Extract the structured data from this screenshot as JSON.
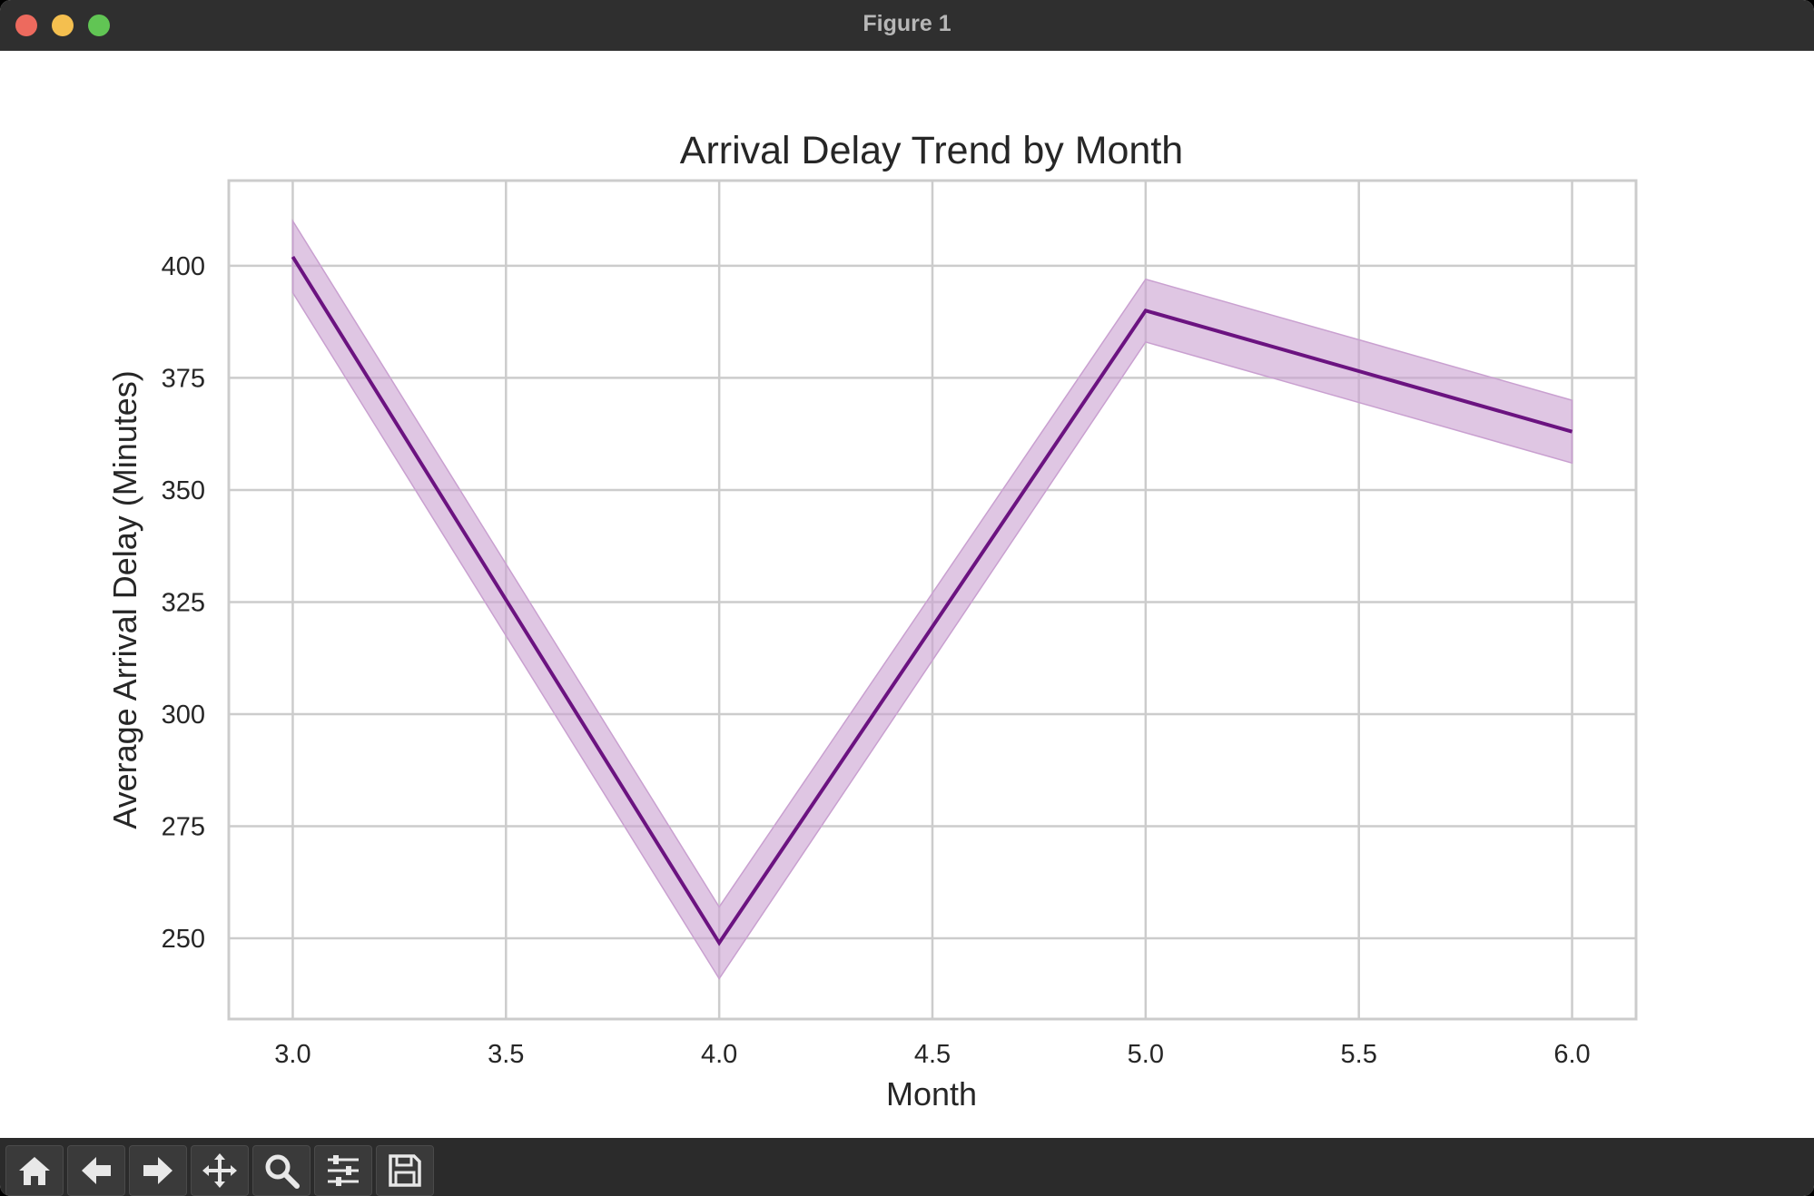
{
  "window": {
    "title": "Figure 1"
  },
  "toolbar": {
    "buttons": [
      {
        "name": "home-button",
        "icon": "home-icon"
      },
      {
        "name": "back-button",
        "icon": "arrow-left-icon"
      },
      {
        "name": "forward-button",
        "icon": "arrow-right-icon"
      },
      {
        "name": "pan-button",
        "icon": "move-icon"
      },
      {
        "name": "zoom-button",
        "icon": "magnifier-icon"
      },
      {
        "name": "configure-subplots-button",
        "icon": "sliders-icon"
      },
      {
        "name": "save-button",
        "icon": "floppy-disk-icon"
      }
    ]
  },
  "chart_data": {
    "type": "line",
    "title": "Arrival Delay Trend by Month",
    "xlabel": "Month",
    "ylabel": "Average Arrival Delay (Minutes)",
    "xlim": [
      2.85,
      6.15
    ],
    "ylim": [
      232,
      419
    ],
    "xticks": [
      "3.0",
      "3.5",
      "4.0",
      "4.5",
      "5.0",
      "5.5",
      "6.0"
    ],
    "yticks": [
      "250",
      "275",
      "300",
      "325",
      "350",
      "375",
      "400"
    ],
    "grid": true,
    "series": [
      {
        "x": [
          3.0,
          4.0,
          5.0,
          6.0
        ],
        "y": [
          402,
          249,
          390,
          363
        ],
        "ci_lower": [
          394,
          241,
          383,
          356
        ],
        "ci_upper": [
          410,
          257,
          397,
          370
        ],
        "color": "#6b1380",
        "band_color": "#c9a0d0"
      }
    ]
  }
}
